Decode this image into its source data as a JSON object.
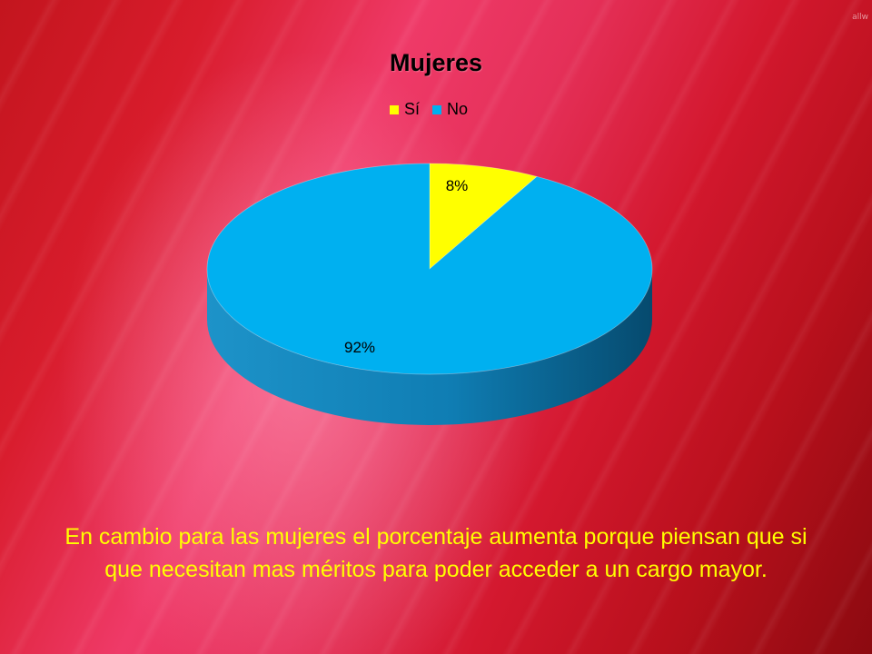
{
  "corner_mark": "allw",
  "chart_data": {
    "type": "pie",
    "title": "Mujeres",
    "categories": [
      "Sí",
      "No"
    ],
    "values": [
      8,
      92
    ],
    "data_labels": [
      "8%",
      "92%"
    ],
    "colors": [
      "#ffff00",
      "#00b0f0"
    ],
    "side_colors": [
      "#b8b800",
      "#0a6fa0"
    ],
    "legend_position": "top",
    "style": "3d-pie"
  },
  "legend": [
    {
      "label": "Sí",
      "color": "#ffff00"
    },
    {
      "label": "No",
      "color": "#00b0f0"
    }
  ],
  "caption": "En cambio para las mujeres el porcentaje aumenta porque piensan que si que necesitan mas méritos para poder acceder a un cargo mayor."
}
